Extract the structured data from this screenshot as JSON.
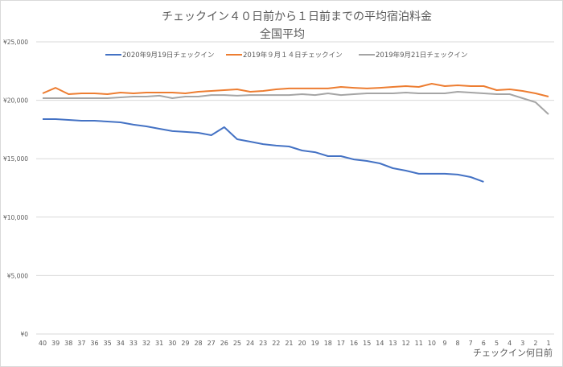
{
  "chart_data": {
    "type": "line",
    "title": "チェックイン４０日前から１日前までの平均宿泊料金",
    "subtitle": "全国平均",
    "xlabel": "チェックイン何日前",
    "ylabel": "",
    "ylim": [
      0,
      25000
    ],
    "yticks": [
      "¥0",
      "¥5,000",
      "¥10,000",
      "¥15,000",
      "¥20,000",
      "¥25,000"
    ],
    "ytick_values": [
      0,
      5000,
      10000,
      15000,
      20000,
      25000
    ],
    "grid": true,
    "legend": "top",
    "x": [
      40,
      39,
      38,
      37,
      36,
      35,
      34,
      33,
      32,
      31,
      30,
      29,
      28,
      27,
      26,
      25,
      24,
      23,
      22,
      21,
      20,
      19,
      18,
      17,
      16,
      15,
      14,
      13,
      12,
      11,
      10,
      9,
      8,
      7,
      6,
      5,
      4,
      3,
      2,
      1
    ],
    "series": [
      {
        "name": "2020年9月19日チェックイン",
        "color": "#4472c4",
        "values": [
          18390,
          18390,
          18320,
          18250,
          18250,
          18180,
          18110,
          17910,
          17770,
          17560,
          17360,
          17290,
          17220,
          17010,
          17700,
          16670,
          16460,
          16250,
          16120,
          16050,
          15700,
          15560,
          15220,
          15220,
          14940,
          14810,
          14600,
          14190,
          13980,
          13710,
          13710,
          13710,
          13640,
          13430,
          13020,
          null,
          null,
          null,
          null,
          null
        ]
      },
      {
        "name": "2019年９月１４日チェックイン",
        "color": "#ed7d31",
        "values": [
          20590,
          21070,
          20520,
          20590,
          20590,
          20520,
          20660,
          20590,
          20660,
          20660,
          20660,
          20590,
          20730,
          20800,
          20870,
          20940,
          20730,
          20800,
          20940,
          21010,
          21010,
          21010,
          21010,
          21140,
          21070,
          21010,
          21070,
          21140,
          21210,
          21140,
          21420,
          21210,
          21280,
          21210,
          21210,
          20870,
          20940,
          20800,
          20590,
          20320
        ]
      },
      {
        "name": "2019年9月21日チェックイン",
        "color": "#a5a5a5",
        "values": [
          20180,
          20180,
          20180,
          20180,
          20180,
          20180,
          20250,
          20320,
          20320,
          20390,
          20180,
          20320,
          20320,
          20450,
          20450,
          20390,
          20450,
          20450,
          20450,
          20450,
          20520,
          20450,
          20590,
          20450,
          20520,
          20590,
          20590,
          20590,
          20660,
          20590,
          20590,
          20590,
          20730,
          20660,
          20590,
          20520,
          20520,
          20180,
          19830,
          18800
        ]
      }
    ]
  }
}
